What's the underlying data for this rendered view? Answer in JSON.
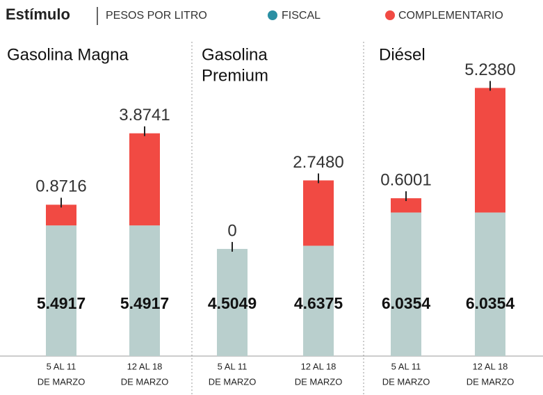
{
  "header": {
    "title": "Estímulo",
    "subtitle": "PESOS POR LITRO"
  },
  "chart_data": [
    {
      "type": "stacked_bar",
      "title": [
        "Gasolina Magna"
      ],
      "categories": [
        [
          "5 AL 11",
          "DE MARZO"
        ],
        [
          "12 AL 18",
          "DE MARZO"
        ]
      ],
      "series": [
        {
          "name": "FISCAL",
          "color": "#b9cfcd",
          "marker_color": "#2a8fa3",
          "values": [
            5.4917,
            5.4917
          ],
          "value_labels": [
            "5.4917",
            "5.4917"
          ]
        },
        {
          "name": "COMPLEMENTARIO",
          "color": "#f14a43",
          "marker_color": "#f14a43",
          "values": [
            0.8716,
            3.8741
          ],
          "value_labels": [
            "0.8716",
            "3.8741"
          ]
        }
      ]
    },
    {
      "type": "stacked_bar",
      "title": [
        "Gasolina",
        "Premium"
      ],
      "categories": [
        [
          "5 AL 11",
          "DE MARZO"
        ],
        [
          "12 AL 18",
          "DE MARZO"
        ]
      ],
      "series": [
        {
          "name": "FISCAL",
          "color": "#b9cfcd",
          "marker_color": "#2a8fa3",
          "values": [
            4.5049,
            4.6375
          ],
          "value_labels": [
            "4.5049",
            "4.6375"
          ]
        },
        {
          "name": "COMPLEMENTARIO",
          "color": "#f14a43",
          "marker_color": "#f14a43",
          "values": [
            0,
            2.748
          ],
          "value_labels": [
            "0",
            "2.7480"
          ]
        }
      ]
    },
    {
      "type": "stacked_bar",
      "title": [
        "Diésel"
      ],
      "categories": [
        [
          "5 AL 11",
          "DE MARZO"
        ],
        [
          "12 AL 18",
          "DE MARZO"
        ]
      ],
      "series": [
        {
          "name": "FISCAL",
          "color": "#b9cfcd",
          "marker_color": "#2a8fa3",
          "values": [
            6.0354,
            6.0354
          ],
          "value_labels": [
            "6.0354",
            "6.0354"
          ]
        },
        {
          "name": "COMPLEMENTARIO",
          "color": "#f14a43",
          "marker_color": "#f14a43",
          "values": [
            0.6001,
            5.238
          ],
          "value_labels": [
            "0.6001",
            "5.2380"
          ]
        }
      ]
    }
  ]
}
